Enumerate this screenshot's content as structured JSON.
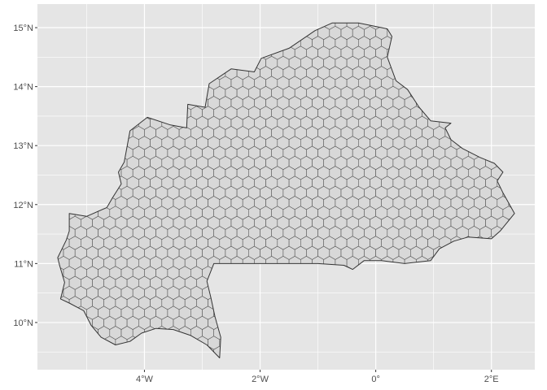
{
  "map": {
    "lon_range": [
      -5.85,
      2.75
    ],
    "lat_range": [
      9.2,
      15.4
    ],
    "panel_background": "#e5e5e5",
    "grid_color": "#ffffff",
    "country_fill": "#d3d3d3",
    "country_stroke": "#333333",
    "hex_fill": "#d8d8d8",
    "hex_stroke": "#555555",
    "hex_spacing_deg": 0.2,
    "x_ticks": [
      {
        "value": -4,
        "label": "4°W"
      },
      {
        "value": -2,
        "label": "2°W"
      },
      {
        "value": 0,
        "label": "0°"
      },
      {
        "value": 2,
        "label": "2°E"
      }
    ],
    "y_ticks": [
      {
        "value": 10,
        "label": "10°N"
      },
      {
        "value": 11,
        "label": "11°N"
      },
      {
        "value": 12,
        "label": "12°N"
      },
      {
        "value": 13,
        "label": "13°N"
      },
      {
        "value": 14,
        "label": "14°N"
      },
      {
        "value": 15,
        "label": "15°N"
      }
    ],
    "boundary": [
      [
        -5.47,
        10.98
      ],
      [
        -5.38,
        10.68
      ],
      [
        -5.45,
        10.4
      ],
      [
        -5.3,
        10.33
      ],
      [
        -5.05,
        10.2
      ],
      [
        -4.92,
        9.95
      ],
      [
        -4.75,
        9.75
      ],
      [
        -4.5,
        9.62
      ],
      [
        -4.25,
        9.68
      ],
      [
        -4.05,
        9.82
      ],
      [
        -3.8,
        9.9
      ],
      [
        -3.5,
        9.88
      ],
      [
        -3.2,
        9.78
      ],
      [
        -2.92,
        9.62
      ],
      [
        -2.7,
        9.4
      ],
      [
        -2.68,
        9.75
      ],
      [
        -2.78,
        10.1
      ],
      [
        -2.85,
        10.42
      ],
      [
        -2.92,
        10.7
      ],
      [
        -2.8,
        11.0
      ],
      [
        -2.0,
        11.0
      ],
      [
        -1.0,
        11.0
      ],
      [
        -0.55,
        10.97
      ],
      [
        -0.4,
        10.9
      ],
      [
        -0.2,
        11.05
      ],
      [
        0.1,
        11.05
      ],
      [
        0.5,
        11.0
      ],
      [
        0.95,
        11.05
      ],
      [
        1.1,
        11.25
      ],
      [
        1.35,
        11.38
      ],
      [
        1.6,
        11.45
      ],
      [
        2.0,
        11.42
      ],
      [
        2.15,
        11.55
      ],
      [
        2.4,
        11.85
      ],
      [
        2.2,
        12.2
      ],
      [
        2.1,
        12.4
      ],
      [
        2.2,
        12.55
      ],
      [
        2.05,
        12.7
      ],
      [
        1.8,
        12.8
      ],
      [
        1.5,
        12.95
      ],
      [
        1.3,
        13.1
      ],
      [
        1.2,
        13.3
      ],
      [
        1.3,
        13.38
      ],
      [
        0.95,
        13.42
      ],
      [
        0.75,
        13.65
      ],
      [
        0.55,
        13.95
      ],
      [
        0.35,
        14.1
      ],
      [
        0.2,
        14.5
      ],
      [
        0.28,
        14.85
      ],
      [
        0.2,
        14.98
      ],
      [
        0.1,
        15.0
      ],
      [
        -0.3,
        15.08
      ],
      [
        -0.75,
        15.08
      ],
      [
        -1.05,
        14.95
      ],
      [
        -1.5,
        14.65
      ],
      [
        -1.98,
        14.48
      ],
      [
        -2.1,
        14.25
      ],
      [
        -2.5,
        14.3
      ],
      [
        -2.88,
        14.05
      ],
      [
        -2.95,
        13.65
      ],
      [
        -3.25,
        13.7
      ],
      [
        -3.27,
        13.3
      ],
      [
        -3.55,
        13.35
      ],
      [
        -3.95,
        13.48
      ],
      [
        -4.25,
        13.25
      ],
      [
        -4.35,
        12.72
      ],
      [
        -4.45,
        12.55
      ],
      [
        -4.4,
        12.35
      ],
      [
        -4.55,
        12.12
      ],
      [
        -4.65,
        11.95
      ],
      [
        -5.0,
        11.8
      ],
      [
        -5.3,
        11.85
      ],
      [
        -5.3,
        11.55
      ],
      [
        -5.35,
        11.4
      ],
      [
        -5.5,
        11.1
      ]
    ]
  }
}
